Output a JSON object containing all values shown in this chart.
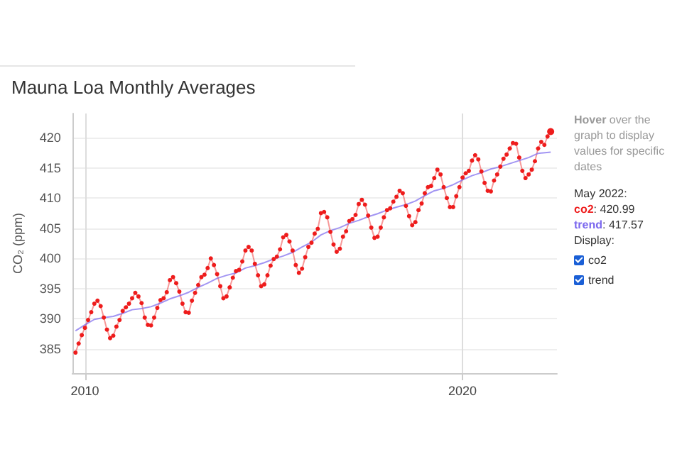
{
  "chart_data": {
    "type": "line",
    "title": "Mauna Loa Monthly Averages",
    "ylabel": "CO₂ (ppm)",
    "annotations": [
      "Hover over the graph to display values for specific dates",
      "May 2022:",
      "co2: 420.99",
      "trend: 417.57",
      "Display:"
    ],
    "x": [
      "2009-10",
      "2009-11",
      "2009-12",
      "2010-01",
      "2010-02",
      "2010-03",
      "2010-04",
      "2010-05",
      "2010-06",
      "2010-07",
      "2010-08",
      "2010-09",
      "2010-10",
      "2010-11",
      "2010-12",
      "2011-01",
      "2011-02",
      "2011-03",
      "2011-04",
      "2011-05",
      "2011-06",
      "2011-07",
      "2011-08",
      "2011-09",
      "2011-10",
      "2011-11",
      "2011-12",
      "2012-01",
      "2012-02",
      "2012-03",
      "2012-04",
      "2012-05",
      "2012-06",
      "2012-07",
      "2012-08",
      "2012-09",
      "2012-10",
      "2012-11",
      "2012-12",
      "2013-01",
      "2013-02",
      "2013-03",
      "2013-04",
      "2013-05",
      "2013-06",
      "2013-07",
      "2013-08",
      "2013-09",
      "2013-10",
      "2013-11",
      "2013-12",
      "2014-01",
      "2014-02",
      "2014-03",
      "2014-04",
      "2014-05",
      "2014-06",
      "2014-07",
      "2014-08",
      "2014-09",
      "2014-10",
      "2014-11",
      "2014-12",
      "2015-01",
      "2015-02",
      "2015-03",
      "2015-04",
      "2015-05",
      "2015-06",
      "2015-07",
      "2015-08",
      "2015-09",
      "2015-10",
      "2015-11",
      "2015-12",
      "2016-01",
      "2016-02",
      "2016-03",
      "2016-04",
      "2016-05",
      "2016-06",
      "2016-07",
      "2016-08",
      "2016-09",
      "2016-10",
      "2016-11",
      "2016-12",
      "2017-01",
      "2017-02",
      "2017-03",
      "2017-04",
      "2017-05",
      "2017-06",
      "2017-07",
      "2017-08",
      "2017-09",
      "2017-10",
      "2017-11",
      "2017-12",
      "2018-01",
      "2018-02",
      "2018-03",
      "2018-04",
      "2018-05",
      "2018-06",
      "2018-07",
      "2018-08",
      "2018-09",
      "2018-10",
      "2018-11",
      "2018-12",
      "2019-01",
      "2019-02",
      "2019-03",
      "2019-04",
      "2019-05",
      "2019-06",
      "2019-07",
      "2019-08",
      "2019-09",
      "2019-10",
      "2019-11",
      "2019-12",
      "2020-01",
      "2020-02",
      "2020-03",
      "2020-04",
      "2020-05",
      "2020-06",
      "2020-07",
      "2020-08",
      "2020-09",
      "2020-10",
      "2020-11",
      "2020-12",
      "2021-01",
      "2021-02",
      "2021-03",
      "2021-04",
      "2021-05",
      "2021-06",
      "2021-07",
      "2021-08",
      "2021-09",
      "2021-10",
      "2021-11",
      "2021-12",
      "2022-01",
      "2022-02",
      "2022-03",
      "2022-04",
      "2022-05"
    ],
    "series": [
      {
        "name": "co2",
        "color": "#ee1c1c",
        "marker": "circle",
        "values": [
          384.4,
          385.9,
          387.3,
          388.5,
          389.8,
          391.1,
          392.5,
          393.0,
          392.1,
          390.2,
          388.2,
          386.8,
          387.2,
          388.7,
          389.8,
          391.3,
          391.9,
          392.5,
          393.4,
          394.3,
          393.7,
          392.6,
          390.2,
          389.0,
          388.9,
          390.2,
          391.8,
          393.1,
          393.4,
          394.4,
          396.4,
          396.9,
          395.9,
          394.5,
          392.5,
          391.1,
          391.0,
          393.0,
          394.3,
          395.6,
          396.9,
          397.3,
          398.4,
          400.0,
          398.9,
          397.4,
          395.4,
          393.4,
          393.7,
          395.2,
          396.8,
          397.9,
          398.1,
          399.5,
          401.3,
          401.9,
          401.3,
          399.1,
          397.2,
          395.4,
          395.7,
          397.2,
          398.8,
          399.9,
          400.3,
          401.5,
          403.5,
          403.9,
          402.8,
          401.3,
          398.9,
          397.6,
          398.3,
          400.2,
          401.9,
          402.6,
          404.1,
          404.9,
          407.5,
          407.7,
          406.8,
          404.4,
          402.3,
          401.1,
          401.6,
          403.6,
          404.5,
          406.2,
          406.5,
          407.2,
          409.0,
          409.7,
          408.9,
          407.1,
          405.1,
          403.4,
          403.6,
          405.1,
          406.8,
          408.0,
          408.3,
          409.4,
          410.2,
          411.2,
          410.8,
          408.7,
          407.0,
          405.5,
          406.0,
          408.0,
          409.1,
          410.8,
          411.8,
          412.0,
          413.3,
          414.7,
          413.9,
          411.8,
          410.0,
          408.5,
          408.5,
          410.3,
          411.8,
          413.4,
          414.1,
          414.5,
          416.2,
          417.1,
          416.4,
          414.4,
          412.5,
          411.2,
          411.1,
          412.9,
          413.9,
          415.2,
          416.5,
          417.2,
          418.2,
          419.1,
          419.0,
          416.7,
          414.5,
          413.3,
          413.9,
          414.7,
          416.1,
          418.2,
          419.3,
          418.8,
          420.2,
          421.0
        ]
      },
      {
        "name": "trend",
        "color": "#7b68ee",
        "marker": "none",
        "x": [
          "2009-10",
          "2010-01",
          "2010-04",
          "2010-07",
          "2010-10",
          "2011-01",
          "2011-04",
          "2011-07",
          "2011-10",
          "2012-01",
          "2012-04",
          "2012-07",
          "2012-10",
          "2013-01",
          "2013-04",
          "2013-07",
          "2013-10",
          "2014-01",
          "2014-04",
          "2014-07",
          "2014-10",
          "2015-01",
          "2015-04",
          "2015-07",
          "2015-10",
          "2016-01",
          "2016-04",
          "2016-07",
          "2016-10",
          "2017-01",
          "2017-04",
          "2017-07",
          "2017-10",
          "2018-01",
          "2018-04",
          "2018-07",
          "2018-10",
          "2019-01",
          "2019-04",
          "2019-07",
          "2019-10",
          "2020-01",
          "2020-04",
          "2020-07",
          "2020-10",
          "2021-01",
          "2021-04",
          "2021-07",
          "2021-10",
          "2022-01",
          "2022-05"
        ],
        "values": [
          388.0,
          389.0,
          389.9,
          390.2,
          390.4,
          390.9,
          391.5,
          391.7,
          392.0,
          392.6,
          393.3,
          393.8,
          394.4,
          395.2,
          395.9,
          396.7,
          397.2,
          397.6,
          398.4,
          398.8,
          399.3,
          399.9,
          400.4,
          401.0,
          401.9,
          402.7,
          403.9,
          404.6,
          405.1,
          405.8,
          406.3,
          406.9,
          407.4,
          408.0,
          408.5,
          408.9,
          409.5,
          410.4,
          411.2,
          411.6,
          412.2,
          413.0,
          413.7,
          414.2,
          414.8,
          415.2,
          415.7,
          416.2,
          416.7,
          417.4,
          417.6
        ]
      }
    ],
    "xlim": [
      "2009-09",
      "2022-07"
    ],
    "xticks": [
      {
        "value": "2010-01",
        "label": "2010"
      },
      {
        "value": "2020-01",
        "label": "2020"
      }
    ],
    "ylim": [
      381,
      424
    ],
    "yticks": [
      385,
      390,
      395,
      400,
      405,
      410,
      415,
      420
    ],
    "grid": true,
    "legend": false
  }
}
